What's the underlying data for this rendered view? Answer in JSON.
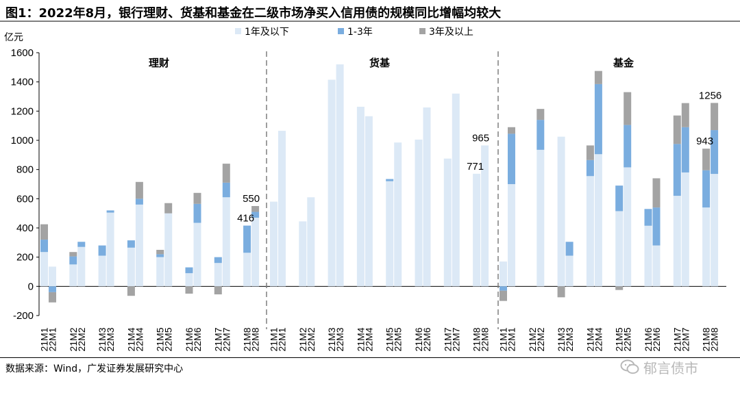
{
  "title": "图1：2022年8月，银行理财、货基和基金在二级市场净买入信用债的规模同比增幅均较大",
  "source": "数据来源：Wind，广发证券发展研究中心",
  "watermark": "郁言债市",
  "colors": {
    "s1": "#dce9f6",
    "s2": "#7aaddf",
    "s3": "#a3a3a3",
    "divider": "#7f7f7f"
  },
  "chart_data": {
    "type": "bar",
    "stacked": true,
    "unit_label": "亿元",
    "ylim": [
      -200,
      1600
    ],
    "yticks": [
      "1600",
      "1400",
      "1200",
      "1000",
      "800",
      "600",
      "400",
      "200",
      "0",
      "-200"
    ],
    "legend": [
      "1年及以下",
      "1-3年",
      "3年及以上"
    ],
    "groups": [
      {
        "name": "理财",
        "categories": [
          "21M1",
          "22M1",
          "21M2",
          "22M2",
          "21M3",
          "22M3",
          "21M4",
          "22M4",
          "21M5",
          "22M5",
          "21M6",
          "22M6",
          "21M7",
          "22M7",
          "21M8",
          "22M8"
        ],
        "series": [
          {
            "name": "1年及以下",
            "values": [
              235,
              135,
              150,
              270,
              210,
              505,
              265,
              560,
              200,
              500,
              90,
              435,
              160,
              610,
              230,
              470
            ]
          },
          {
            "name": "1-3年",
            "values": [
              85,
              -40,
              55,
              35,
              70,
              15,
              50,
              40,
              20,
              0,
              40,
              130,
              40,
              100,
              186,
              40
            ]
          },
          {
            "name": "3年及以上",
            "values": [
              105,
              -70,
              30,
              0,
              0,
              0,
              -65,
              115,
              30,
              70,
              -50,
              75,
              -55,
              130,
              0,
              40
            ]
          }
        ]
      },
      {
        "name": "货基",
        "categories": [
          "21M1",
          "22M1",
          "21M2",
          "22M2",
          "21M3",
          "22M3",
          "21M4",
          "22M4",
          "21M5",
          "22M5",
          "21M6",
          "22M6",
          "21M7",
          "22M7",
          "21M8",
          "22M8"
        ],
        "series": [
          {
            "name": "1年及以下",
            "values": [
              580,
              1065,
              445,
              610,
              1415,
              1520,
              1230,
              1165,
              720,
              985,
              1005,
              1225,
              875,
              1320,
              771,
              965
            ]
          },
          {
            "name": "1-3年",
            "values": [
              0,
              0,
              0,
              0,
              0,
              0,
              0,
              0,
              15,
              0,
              0,
              0,
              0,
              0,
              0,
              0
            ]
          },
          {
            "name": "3年及以上",
            "values": [
              0,
              0,
              0,
              0,
              0,
              0,
              0,
              0,
              0,
              0,
              0,
              0,
              0,
              0,
              0,
              0
            ]
          }
        ]
      },
      {
        "name": "基金",
        "categories": [
          "21M1",
          "22M1",
          "21M2",
          "22M2",
          "21M3",
          "22M3",
          "21M4",
          "22M4",
          "21M5",
          "22M5",
          "21M6",
          "22M6",
          "21M7",
          "22M7",
          "21M8",
          "22M8"
        ],
        "series": [
          {
            "name": "1年及以下",
            "values": [
              170,
              700,
              0,
              935,
              1025,
              210,
              755,
              905,
              515,
              815,
              415,
              280,
              620,
              780,
              540,
              770
            ]
          },
          {
            "name": "1-3年",
            "values": [
              -30,
              345,
              0,
              205,
              0,
              95,
              110,
              480,
              175,
              290,
              115,
              260,
              355,
              310,
              255,
              300
            ]
          },
          {
            "name": "3年及以上",
            "values": [
              -70,
              45,
              0,
              75,
              -75,
              0,
              100,
              90,
              -25,
              225,
              0,
              200,
              195,
              165,
              148,
              186
            ]
          }
        ]
      }
    ],
    "annotations": [
      {
        "group": 0,
        "index": 14,
        "text": "416"
      },
      {
        "group": 0,
        "index": 15,
        "text": "550"
      },
      {
        "group": 1,
        "index": 14,
        "text": "771"
      },
      {
        "group": 1,
        "index": 15,
        "text": "965"
      },
      {
        "group": 2,
        "index": 14,
        "text": "943"
      },
      {
        "group": 2,
        "index": 15,
        "text": "1256"
      }
    ]
  }
}
